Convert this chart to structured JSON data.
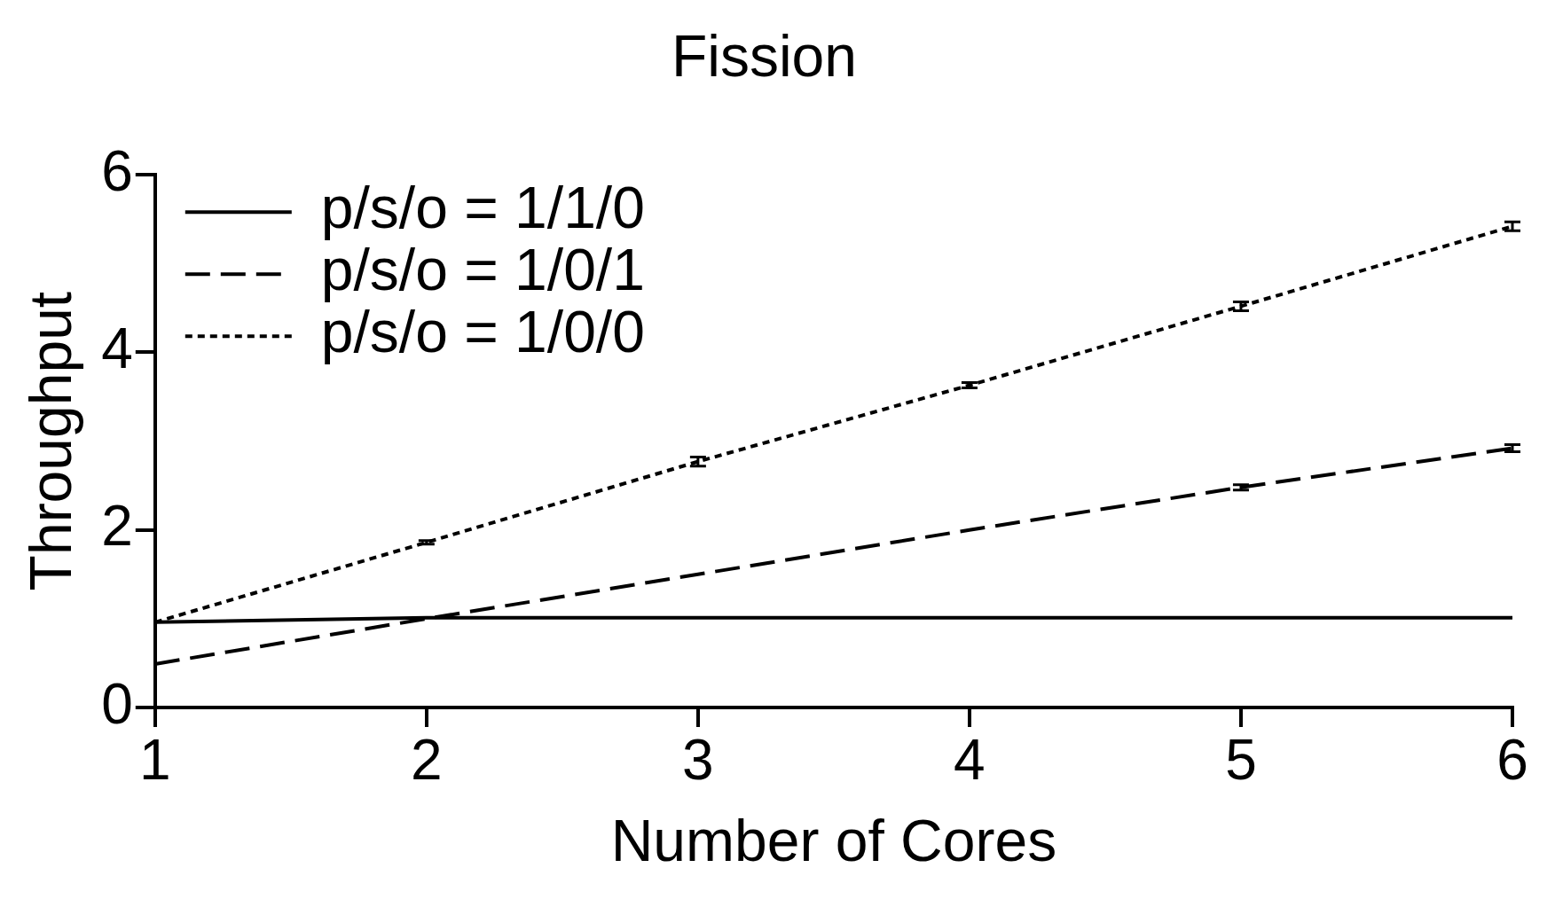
{
  "chart_data": {
    "type": "line",
    "title": "Fission",
    "xlabel": "Number of Cores",
    "ylabel": "Throughput",
    "x": [
      1,
      2,
      3,
      4,
      5,
      6
    ],
    "xlim": [
      1,
      6
    ],
    "xticks": [
      1,
      2,
      3,
      4,
      5,
      6
    ],
    "ylim": [
      0,
      6
    ],
    "yticks": [
      0,
      2,
      4,
      6
    ],
    "legend": "top left",
    "marker": "none",
    "series": [
      {
        "name": "p/s/o = 1/1/0",
        "color": "#000000",
        "line_style": "solid",
        "values": [
          0.96,
          1.01,
          1.01,
          1.01,
          1.01,
          1.01
        ]
      },
      {
        "name": "p/s/o = 1/0/1",
        "color": "#000000",
        "line_style": "dashed",
        "values": [
          0.49,
          1.0,
          1.5,
          2.0,
          2.48,
          2.92
        ],
        "errors": [
          null,
          null,
          null,
          null,
          0.03,
          0.04
        ]
      },
      {
        "name": "p/s/o = 1/0/0",
        "color": "#000000",
        "line_style": "dotted",
        "values": [
          0.96,
          1.86,
          2.77,
          3.63,
          4.52,
          5.42
        ],
        "errors": [
          null,
          0.02,
          0.05,
          0.03,
          0.05,
          0.05
        ]
      }
    ]
  }
}
